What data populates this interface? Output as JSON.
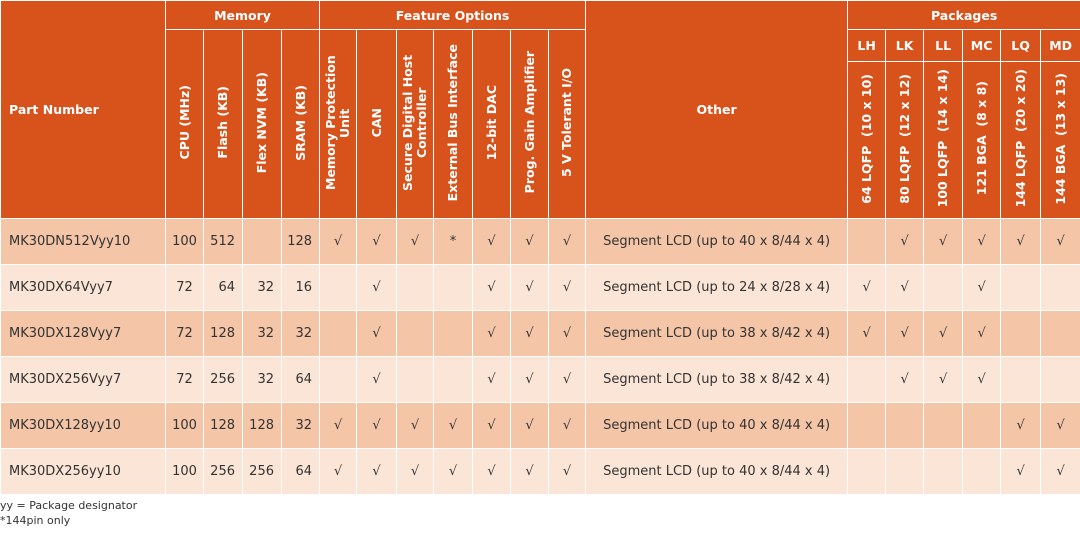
{
  "header": {
    "part_number": "Part Number",
    "memory": "Memory",
    "feature_options": "Feature Options",
    "other": "Other",
    "packages": "Packages",
    "memory_cols": [
      "CPU (MHz)",
      "Flash (KB)",
      "Flex NVM (KB)",
      "SRAM (KB)"
    ],
    "feature_cols": [
      "Memory Protection Unit",
      "CAN",
      "Secure Digital Host Controller",
      "External Bus Interface",
      "12-bit DAC",
      "Prog. Gain Amplifier",
      "5 V Tolerant I/O"
    ],
    "package_codes": [
      "LH",
      "LK",
      "LL",
      "MC",
      "LQ",
      "MD"
    ],
    "package_names": [
      "64 LQFP  (10 x 10)",
      "80 LQFP  (12 x 12)",
      "100 LQFP  (14 x 14)",
      "121 BGA  (8 x 8)",
      "144 LQFP  (20 x 20)",
      "144 BGA  (13 x 13)"
    ]
  },
  "rows": [
    {
      "part": "MK30DN512Vyy10",
      "mem": [
        "100",
        "512",
        "",
        "128"
      ],
      "feat": [
        "√",
        "√",
        "√",
        "*",
        "√",
        "√",
        "√"
      ],
      "other": "Segment LCD (up to 40 x 8/44 x 4)",
      "pkg": [
        "",
        "√",
        "√",
        "√",
        "√",
        "√"
      ]
    },
    {
      "part": "MK30DX64Vyy7",
      "mem": [
        "72",
        "64",
        "32",
        "16"
      ],
      "feat": [
        "",
        "√",
        "",
        "",
        "√",
        "√",
        "√"
      ],
      "other": "Segment LCD (up to 24 x 8/28 x 4)",
      "pkg": [
        "√",
        "√",
        "",
        "√",
        "",
        ""
      ]
    },
    {
      "part": "MK30DX128Vyy7",
      "mem": [
        "72",
        "128",
        "32",
        "32"
      ],
      "feat": [
        "",
        "√",
        "",
        "",
        "√",
        "√",
        "√"
      ],
      "other": "Segment LCD (up to 38 x 8/42 x 4)",
      "pkg": [
        "√",
        "√",
        "√",
        "√",
        "",
        ""
      ]
    },
    {
      "part": "MK30DX256Vyy7",
      "mem": [
        "72",
        "256",
        "32",
        "64"
      ],
      "feat": [
        "",
        "√",
        "",
        "",
        "√",
        "√",
        "√"
      ],
      "other": "Segment LCD (up to 38 x 8/42 x 4)",
      "pkg": [
        "",
        "√",
        "√",
        "√",
        "",
        ""
      ]
    },
    {
      "part": "MK30DX128yy10",
      "mem": [
        "100",
        "128",
        "128",
        "32"
      ],
      "feat": [
        "√",
        "√",
        "√",
        "√",
        "√",
        "√",
        "√"
      ],
      "other": "Segment LCD (up to 40 x 8/44 x 4)",
      "pkg": [
        "",
        "",
        "",
        "",
        "√",
        "√"
      ]
    },
    {
      "part": "MK30DX256yy10",
      "mem": [
        "100",
        "256",
        "256",
        "64"
      ],
      "feat": [
        "√",
        "√",
        "√",
        "√",
        "√",
        "√",
        "√"
      ],
      "other": "Segment LCD (up to 40 x 8/44 x 4)",
      "pkg": [
        "",
        "",
        "",
        "",
        "√",
        "√"
      ]
    }
  ],
  "footnotes": [
    "yy = Package designator",
    "*144pin only"
  ],
  "colors": {
    "header": "#d8521c",
    "row_odd": "#f4c5a7",
    "row_even": "#fbe5d6"
  }
}
